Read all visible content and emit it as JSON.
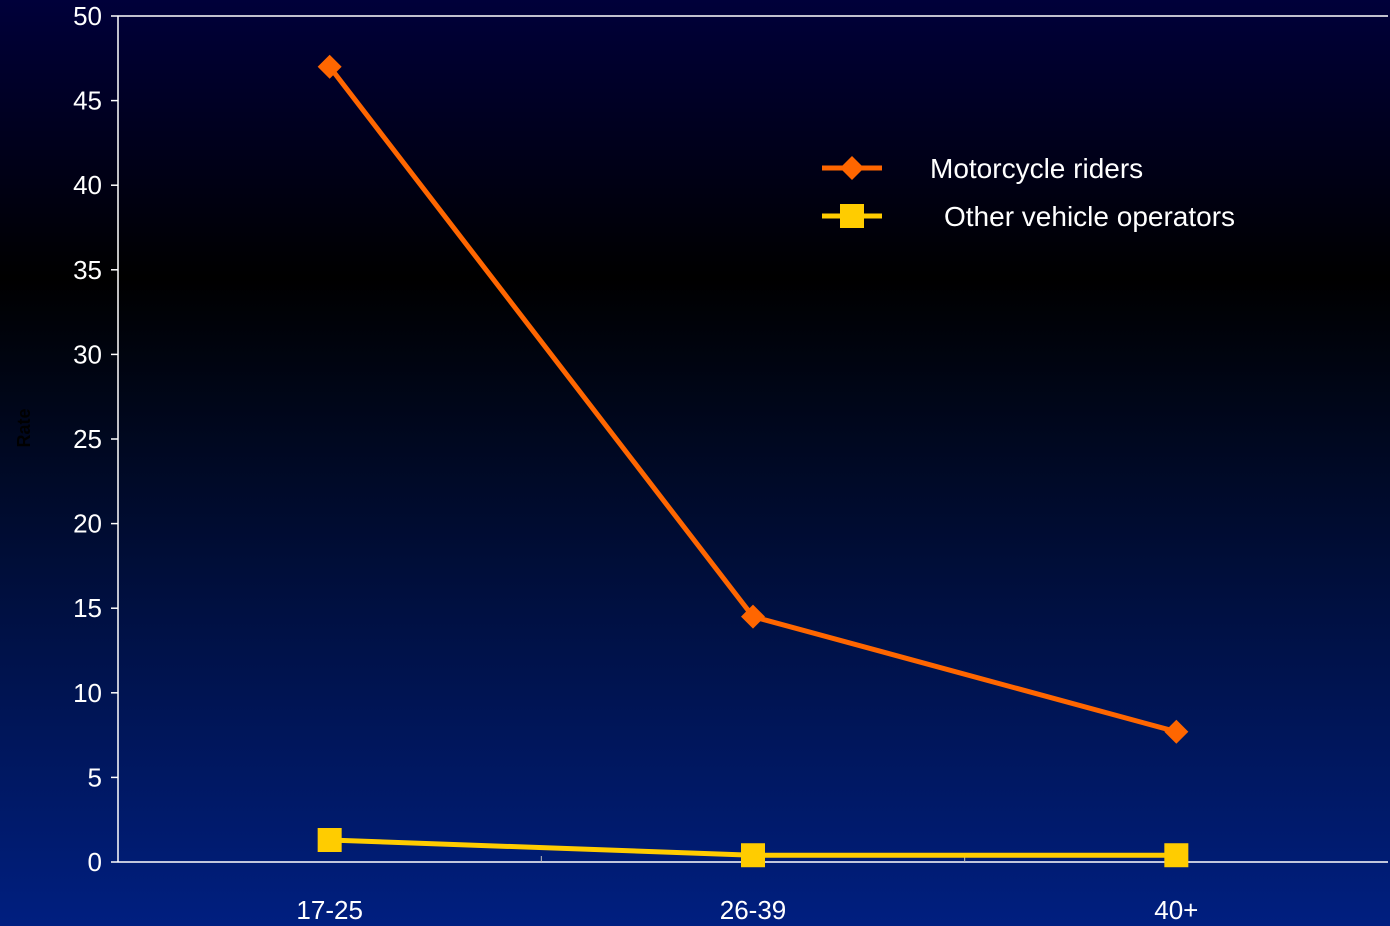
{
  "chart_data": {
    "type": "line",
    "categories": [
      "17-25",
      "26-39",
      "40+"
    ],
    "ylabel": "Rate",
    "ylim": [
      0,
      50
    ],
    "ytick_step": 5,
    "grid": false,
    "legend_position": "top-right",
    "series": [
      {
        "name": "Motorcycle riders",
        "values": [
          47,
          14.5,
          7.7
        ],
        "color": "#ff6600",
        "marker": "diamond"
      },
      {
        "name": "Other vehicle operators",
        "values": [
          1.3,
          0.4,
          0.4
        ],
        "color": "#ffcc00",
        "marker": "square"
      }
    ],
    "colors": {
      "axis": "#ffffff",
      "text": "#ffffff"
    }
  }
}
